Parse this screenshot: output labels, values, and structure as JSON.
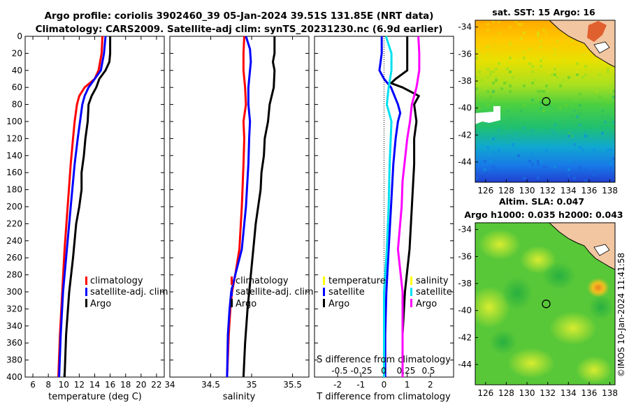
{
  "header": {
    "title_line1": "Argo profile: coriolis 3902460_39 05-Jan-2024 39.51S 131.85E (NRT data)",
    "title_line2": "Climatology: CARS2009. Satellite-adj clim: synTS_20231230.nc (6.9d earlier)"
  },
  "colors": {
    "climatology": "#ff0000",
    "satellite": "#0000ff",
    "argo": "#000000",
    "t_sat": "#00e0f0",
    "s_diff": "#ff00ff",
    "temperature_legend": "#ffff00",
    "land": "#f5c8a0",
    "coast": "#000000"
  },
  "chart_data": [
    {
      "id": "temperature",
      "type": "line",
      "xlabel": "temperature (deg C)",
      "xlim": [
        5,
        23
      ],
      "xticks": [
        6,
        8,
        10,
        12,
        14,
        16,
        18,
        20,
        22
      ],
      "xtick_labels": [
        "6",
        "8",
        "10",
        "12",
        "14",
        "16",
        "18",
        "20",
        "22"
      ],
      "ylim": [
        0,
        400
      ],
      "yticks": [
        0,
        20,
        40,
        60,
        80,
        100,
        120,
        140,
        160,
        180,
        200,
        220,
        240,
        260,
        280,
        300,
        320,
        340,
        360,
        380,
        400
      ],
      "ytick_labels": [
        "0",
        "20",
        "40",
        "60",
        "80",
        "100",
        "120",
        "140",
        "160",
        "180",
        "200",
        "220",
        "240",
        "260",
        "280",
        "300",
        "320",
        "340",
        "360",
        "380",
        "400"
      ],
      "legend": [
        "climatology",
        "satellite-adj. clim",
        "Argo"
      ],
      "series": [
        {
          "name": "climatology",
          "color": "#ff0000",
          "depth": [
            0,
            20,
            40,
            50,
            60,
            70,
            80,
            100,
            120,
            150,
            200,
            250,
            300,
            350,
            400
          ],
          "values": [
            15.0,
            14.9,
            14.5,
            14.0,
            12.7,
            12.0,
            11.7,
            11.4,
            11.2,
            10.9,
            10.5,
            10.1,
            9.8,
            9.5,
            9.3
          ]
        },
        {
          "name": "satellite-adj. clim",
          "color": "#0000ff",
          "depth": [
            0,
            20,
            40,
            50,
            60,
            70,
            80,
            100,
            120,
            150,
            200,
            250,
            300,
            350,
            400
          ],
          "values": [
            15.4,
            15.2,
            14.8,
            14.0,
            13.2,
            12.7,
            12.4,
            12.1,
            11.8,
            11.4,
            10.9,
            10.4,
            9.9,
            9.6,
            9.4
          ]
        },
        {
          "name": "Argo",
          "color": "#000000",
          "depth": [
            0,
            20,
            30,
            40,
            50,
            60,
            70,
            80,
            100,
            120,
            140,
            160,
            180,
            200,
            220,
            260,
            300,
            350,
            400
          ],
          "values": [
            16.0,
            16.0,
            15.9,
            15.4,
            14.6,
            14.2,
            13.6,
            13.2,
            13.1,
            12.8,
            12.6,
            12.3,
            12.3,
            12.0,
            11.6,
            11.2,
            10.7,
            10.3,
            10.1
          ]
        }
      ]
    },
    {
      "id": "salinity",
      "type": "line",
      "xlabel": "salinity",
      "xlim": [
        34,
        35.7
      ],
      "xticks": [
        34,
        34.5,
        35,
        35.5
      ],
      "xtick_labels": [
        "34",
        "34.5",
        "35",
        "35.5"
      ],
      "ylim": [
        0,
        400
      ],
      "legend": [
        "climatology",
        "satellite-adj. clim",
        "Argo"
      ],
      "series": [
        {
          "name": "climatology",
          "color": "#ff0000",
          "depth": [
            0,
            20,
            40,
            60,
            80,
            100,
            120,
            150,
            200,
            250,
            280,
            300,
            320,
            350,
            400
          ],
          "values": [
            34.91,
            34.9,
            34.9,
            34.92,
            34.93,
            34.9,
            34.91,
            34.9,
            34.88,
            34.85,
            34.8,
            34.76,
            34.74,
            34.72,
            34.7
          ]
        },
        {
          "name": "satellite-adj. clim",
          "color": "#0000ff",
          "depth": [
            0,
            15,
            30,
            40,
            60,
            80,
            100,
            120,
            150,
            200,
            250,
            280,
            300,
            320,
            350,
            400
          ],
          "values": [
            34.93,
            34.98,
            34.99,
            34.98,
            34.96,
            34.96,
            34.98,
            34.97,
            34.96,
            34.93,
            34.88,
            34.8,
            34.75,
            34.73,
            34.71,
            34.7
          ]
        },
        {
          "name": "Argo",
          "color": "#000000",
          "depth": [
            0,
            20,
            30,
            40,
            60,
            80,
            100,
            120,
            140,
            160,
            180,
            200,
            220,
            240,
            280,
            320,
            360,
            400
          ],
          "values": [
            35.28,
            35.28,
            35.26,
            35.28,
            35.27,
            35.22,
            35.2,
            35.16,
            35.15,
            35.12,
            35.11,
            35.08,
            35.05,
            35.03,
            34.99,
            34.95,
            34.92,
            34.9
          ]
        }
      ]
    },
    {
      "id": "difference",
      "type": "line",
      "xlabel": "T difference from climatology",
      "xlim": [
        -3,
        3
      ],
      "xticks": [
        -2,
        -1,
        0,
        1,
        2
      ],
      "xtick_labels": [
        "-2",
        "-1",
        "0",
        "1",
        "2"
      ],
      "s_axis_label": "S difference from climatology",
      "s_xtick_labels": [
        "-0.5",
        "-0.25",
        "0",
        "0.25",
        "0.5"
      ],
      "ylim": [
        0,
        400
      ],
      "legend_left": [
        "temperature",
        "satellite",
        "Argo"
      ],
      "legend_right": [
        "salinity",
        "satellite",
        "Argo"
      ],
      "series": [
        {
          "name": "temperature satellite",
          "color": "#0000ff",
          "depth": [
            0,
            20,
            40,
            50,
            60,
            80,
            90,
            100,
            120,
            150,
            200,
            250,
            300,
            350,
            400
          ],
          "values": [
            -0.1,
            -0.1,
            -0.2,
            0.0,
            0.3,
            0.6,
            0.7,
            0.6,
            0.5,
            0.4,
            0.3,
            0.2,
            0.1,
            0.05,
            0.05
          ]
        },
        {
          "name": "temperature Argo",
          "color": "#000000",
          "depth": [
            0,
            20,
            40,
            50,
            55,
            60,
            70,
            80,
            100,
            120,
            150,
            200,
            250,
            300,
            350,
            400
          ],
          "values": [
            1.0,
            1.0,
            1.0,
            0.5,
            0.3,
            0.8,
            1.5,
            1.3,
            1.4,
            1.3,
            1.3,
            1.2,
            1.1,
            0.9,
            0.8,
            0.8
          ]
        },
        {
          "name": "salinity satellite",
          "color": "#00e0f0",
          "depth": [
            0,
            20,
            40,
            60,
            80,
            100,
            150,
            200,
            250,
            300,
            350,
            400
          ],
          "values": [
            0.02,
            0.08,
            0.08,
            0.05,
            0.03,
            0.08,
            0.06,
            0.05,
            0.03,
            0.0,
            0.0,
            0.0
          ]
        },
        {
          "name": "salinity Argo",
          "color": "#ff00ff",
          "depth": [
            0,
            20,
            40,
            60,
            80,
            100,
            120,
            150,
            170,
            200,
            250,
            300,
            350,
            400
          ],
          "values": [
            0.37,
            0.38,
            0.38,
            0.35,
            0.3,
            0.28,
            0.25,
            0.22,
            0.2,
            0.19,
            0.15,
            0.2,
            0.2,
            0.2
          ]
        }
      ]
    },
    {
      "id": "sst_map",
      "type": "heatmap",
      "title": "sat. SST: 15 Argo: 16",
      "xlim": [
        125,
        138.5
      ],
      "ylim": [
        -45.5,
        -33.5
      ],
      "xtick_labels": [
        "126",
        "128",
        "130",
        "132",
        "134",
        "136",
        "138"
      ],
      "ytick_labels": [
        "-34",
        "-36",
        "-38",
        "-40",
        "-42",
        "-44"
      ],
      "argo_lon": 131.85,
      "argo_lat": -39.51
    },
    {
      "id": "sla_map",
      "type": "heatmap",
      "title_line1": "Altim. SLA: 0.047",
      "title_line2": "Argo h1000: 0.035 h2000: 0.043",
      "xlim": [
        125,
        138.5
      ],
      "ylim": [
        -45.5,
        -33.5
      ],
      "xtick_labels": [
        "126",
        "128",
        "130",
        "132",
        "134",
        "136",
        "138"
      ],
      "ytick_labels": [
        "-34",
        "-36",
        "-38",
        "-40",
        "-42",
        "-44"
      ],
      "argo_lon": 131.85,
      "argo_lat": -39.51
    }
  ],
  "footer": {
    "credit": "©IMOS 10-Jan-2024 11:41:58"
  }
}
